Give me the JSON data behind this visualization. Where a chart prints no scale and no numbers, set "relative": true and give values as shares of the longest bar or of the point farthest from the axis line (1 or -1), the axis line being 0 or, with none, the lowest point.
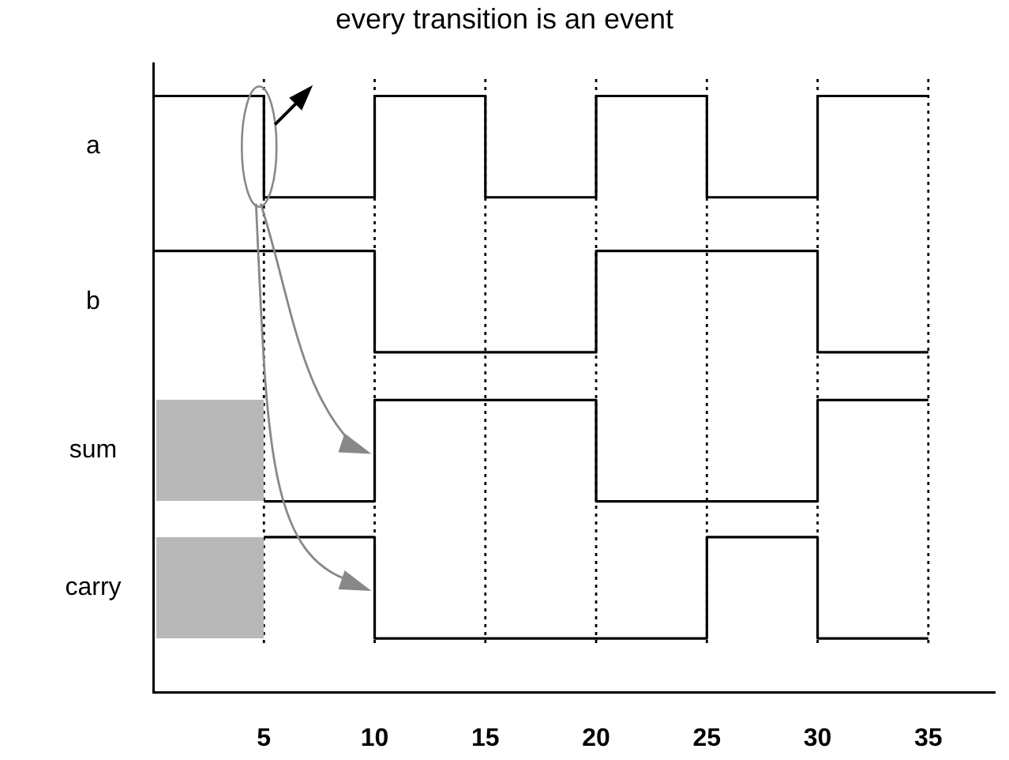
{
  "chart_data": {
    "type": "step",
    "annotations": [
      "every transition is an event",
      "a",
      "b",
      "sum",
      "carry"
    ],
    "xlim": [
      0,
      38
    ],
    "xticks": [
      5,
      10,
      15,
      20,
      25,
      30,
      35
    ],
    "relative": true,
    "grid": false,
    "legend": false,
    "marker": "none",
    "line_style": "solid",
    "ref_lines": [
      {
        "axis": "x",
        "value": 5,
        "line_style": "dotted",
        "color": "#000000"
      },
      {
        "axis": "x",
        "value": 10,
        "line_style": "dotted",
        "color": "#000000"
      },
      {
        "axis": "x",
        "value": 15,
        "line_style": "dotted",
        "color": "#000000"
      },
      {
        "axis": "x",
        "value": 20,
        "line_style": "dotted",
        "color": "#000000"
      },
      {
        "axis": "x",
        "value": 25,
        "line_style": "dotted",
        "color": "#000000"
      },
      {
        "axis": "x",
        "value": 30,
        "line_style": "dotted",
        "color": "#000000"
      },
      {
        "axis": "x",
        "value": 35,
        "line_style": "dotted",
        "color": "#000000"
      }
    ],
    "series": [
      {
        "color": "#000000",
        "x": [
          0,
          5,
          10,
          15,
          20,
          25,
          30,
          35
        ],
        "values": [
          1,
          0.83,
          1,
          0.83,
          1,
          0.83,
          1,
          1
        ]
      },
      {
        "color": "#000000",
        "x": [
          0,
          10,
          20,
          30,
          35
        ],
        "values": [
          0.74,
          0.57,
          0.74,
          0.57,
          0.57
        ]
      },
      {
        "color": "#000000",
        "x": [
          5,
          10,
          20,
          30,
          35
        ],
        "values": [
          0.32,
          0.49,
          0.32,
          0.49,
          0.49
        ]
      },
      {
        "color": "#000000",
        "x": [
          5,
          10,
          25,
          30,
          35
        ],
        "values": [
          0.26,
          0.09,
          0.26,
          0.09,
          0.09
        ]
      }
    ]
  }
}
